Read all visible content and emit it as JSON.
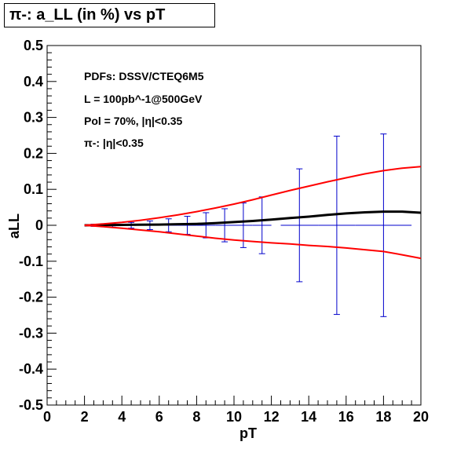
{
  "chart_data": {
    "type": "line",
    "title": "π-: a_LL (in %) vs pT",
    "xlabel": "pT",
    "ylabel": "aLL",
    "xlim": [
      0,
      20
    ],
    "ylim": [
      -0.5,
      0.5
    ],
    "x_ticks": [
      0,
      2,
      4,
      6,
      8,
      10,
      12,
      14,
      16,
      18,
      20
    ],
    "y_ticks": [
      -0.5,
      -0.4,
      -0.3,
      -0.2,
      -0.1,
      0,
      0.1,
      0.2,
      0.3,
      0.4,
      0.5
    ],
    "y_tick_labels": [
      "-0.5",
      "-0.4",
      "-0.3",
      "-0.2",
      "-0.1",
      "0",
      "0.1",
      "0.2",
      "0.3",
      "0.4",
      "0.5"
    ],
    "annotations": [
      "PDFs: DSSV/CTEQ6M5",
      "L = 100pb^-1@500GeV",
      "Pol = 70%, |η|<0.35",
      "π-: |η|<0.35"
    ],
    "series": [
      {
        "color": "#000000",
        "x": [
          2,
          3,
          4,
          5,
          6,
          7,
          8,
          9,
          10,
          11,
          12,
          13,
          14,
          15,
          16,
          17,
          18,
          19,
          20
        ],
        "values": [
          0.0,
          0.0005,
          0.001,
          0.0015,
          0.002,
          0.003,
          0.004,
          0.006,
          0.009,
          0.012,
          0.016,
          0.02,
          0.024,
          0.029,
          0.033,
          0.036,
          0.038,
          0.038,
          0.035
        ]
      },
      {
        "color": "#ff0000",
        "x": [
          2,
          3,
          4,
          5,
          6,
          7,
          8,
          9,
          10,
          11,
          12,
          13,
          14,
          15,
          16,
          17,
          18,
          19,
          20
        ],
        "values": [
          0.0,
          0.004,
          0.008,
          0.014,
          0.021,
          0.029,
          0.038,
          0.048,
          0.059,
          0.071,
          0.084,
          0.097,
          0.109,
          0.121,
          0.132,
          0.143,
          0.152,
          0.159,
          0.163
        ]
      },
      {
        "color": "#ff0000",
        "x": [
          2,
          3,
          4,
          5,
          6,
          7,
          8,
          9,
          10,
          11,
          12,
          13,
          14,
          15,
          16,
          17,
          18,
          19,
          20
        ],
        "values": [
          0.0,
          -0.004,
          -0.008,
          -0.013,
          -0.018,
          -0.024,
          -0.03,
          -0.036,
          -0.041,
          -0.045,
          -0.049,
          -0.052,
          -0.056,
          -0.059,
          -0.063,
          -0.068,
          -0.073,
          -0.082,
          -0.092
        ]
      }
    ],
    "error_bars": {
      "color": "#0000cc",
      "x": [
        2.5,
        3.5,
        4.5,
        5.5,
        6.5,
        7.5,
        8.5,
        9.5,
        10.5,
        11.5,
        13.5,
        15.5,
        18.0
      ],
      "values": [
        0,
        0,
        0,
        0,
        0,
        0,
        0,
        0,
        0,
        0,
        0,
        0,
        0
      ],
      "x_err": [
        0.5,
        0.5,
        0.5,
        0.5,
        0.5,
        0.5,
        0.5,
        0.5,
        0.5,
        0.5,
        1.0,
        1.0,
        1.5
      ],
      "y_err": [
        0.003,
        0.005,
        0.008,
        0.012,
        0.018,
        0.025,
        0.035,
        0.046,
        0.062,
        0.079,
        0.157,
        0.248,
        0.254
      ],
      "cap_x": [
        3.5,
        4.5,
        5.5,
        6.5,
        7.5,
        8.5,
        9.5,
        10.5,
        11.5,
        13.5,
        15.5,
        18.0
      ]
    }
  }
}
